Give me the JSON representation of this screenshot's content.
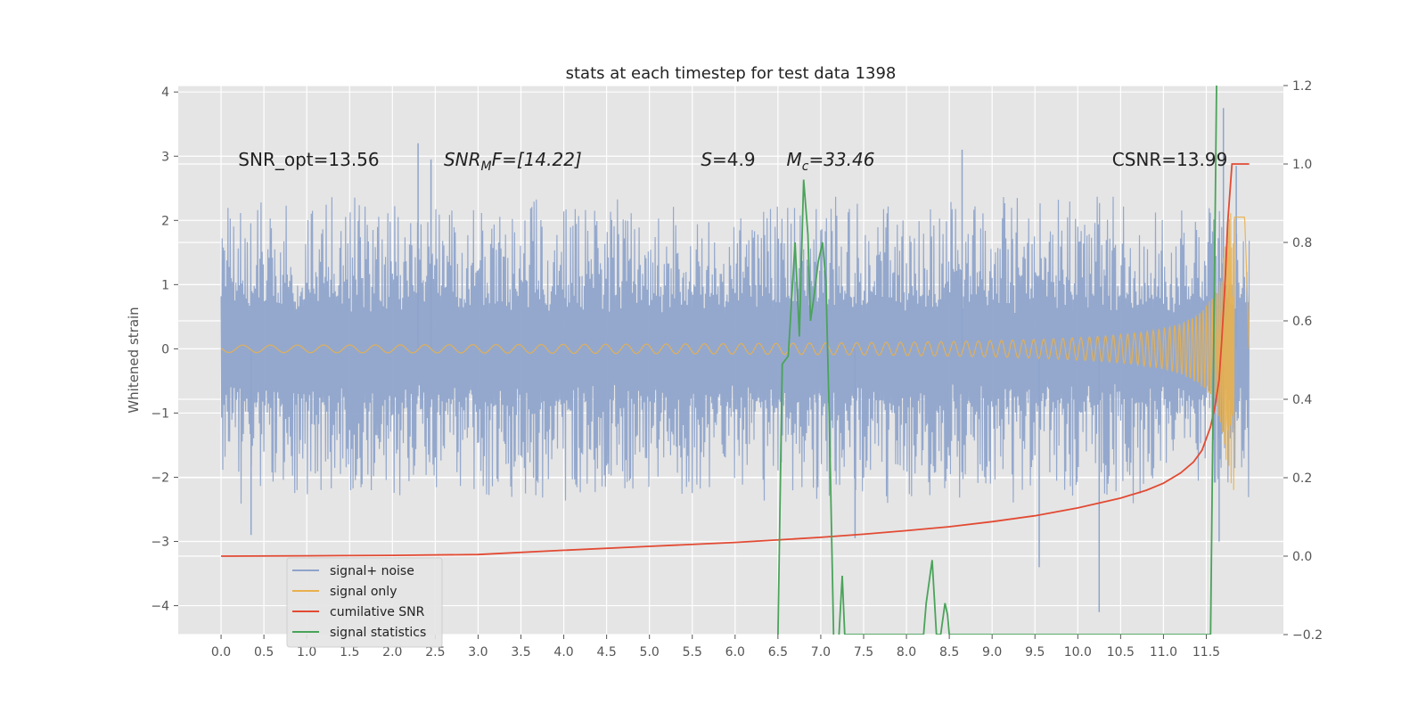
{
  "chart_data": {
    "type": "line",
    "title": "stats at each timestep for test data 1398",
    "xlabel": "",
    "ylabel": "Whitened strain",
    "xlim": [
      -0.5,
      12.4
    ],
    "ylim": [
      -4.45,
      4.1
    ],
    "y2lim": [
      -0.2,
      1.2
    ],
    "x_ticks": [
      0.0,
      0.5,
      1.0,
      1.5,
      2.0,
      2.5,
      3.0,
      3.5,
      4.0,
      4.5,
      5.0,
      5.5,
      6.0,
      6.5,
      7.0,
      7.5,
      8.0,
      8.5,
      9.0,
      9.5,
      10.0,
      10.5,
      11.0,
      11.5
    ],
    "x_tick_labels": [
      "0.0",
      "0.5",
      "1.0",
      "1.5",
      "2.0",
      "2.5",
      "3.0",
      "3.5",
      "4.0",
      "4.5",
      "5.0",
      "5.5",
      "6.0",
      "6.5",
      "7.0",
      "7.5",
      "8.0",
      "8.5",
      "9.0",
      "9.5",
      "10.0",
      "10.5",
      "11.0",
      "11.5"
    ],
    "y_ticks": [
      -4,
      -3,
      -2,
      -1,
      0,
      1,
      2,
      3,
      4
    ],
    "y_tick_labels": [
      "−4",
      "−3",
      "−2",
      "−1",
      "0",
      "1",
      "2",
      "3",
      "4"
    ],
    "y2_ticks": [
      -0.2,
      0.0,
      0.2,
      0.4,
      0.6,
      0.8,
      1.0,
      1.2
    ],
    "y2_tick_labels": [
      "−0.2",
      "0.0",
      "0.2",
      "0.4",
      "0.6",
      "0.8",
      "1.0",
      "1.2"
    ],
    "grid": true,
    "legend_position": "lower-left",
    "annotations": [
      {
        "x": 0.2,
        "y": 2.95,
        "prefix": "SNR_opt",
        "sub": "",
        "suffix": "=13.56",
        "italic": false
      },
      {
        "x": 2.6,
        "y": 2.95,
        "prefix": "SNR",
        "sub": "M",
        "suffix": "F=[14.22]",
        "italic": true
      },
      {
        "x": 5.6,
        "y": 2.95,
        "prefix": "S",
        "sub": "",
        "suffix": "=4.9",
        "italic": true
      },
      {
        "x": 6.6,
        "y": 2.95,
        "prefix": "M",
        "sub": "c",
        "suffix": "=33.46",
        "italic": true
      },
      {
        "x": 10.4,
        "y": 2.95,
        "prefix": "CSNR",
        "sub": "",
        "suffix": "=13.99",
        "italic": false
      }
    ],
    "series": [
      {
        "name": "signal+ noise",
        "axis": "left",
        "color": "#8fa4cb",
        "style": "dense-noise",
        "x_range": [
          0.0,
          12.0
        ],
        "envelope_positive": 2.3,
        "envelope_negative": -2.3,
        "peaks": [
          [
            2.3,
            3.2
          ],
          [
            2.45,
            2.95
          ],
          [
            8.65,
            3.1
          ],
          [
            11.7,
            3.75
          ],
          [
            0.35,
            -2.9
          ],
          [
            9.55,
            -3.4
          ],
          [
            10.25,
            -4.1
          ],
          [
            11.65,
            -3.0
          ],
          [
            7.4,
            -2.95
          ],
          [
            11.85,
            2.85
          ]
        ]
      },
      {
        "name": "signal only",
        "axis": "left",
        "color": "#e8b04e",
        "style": "chirp",
        "x_range": [
          0.0,
          12.0
        ],
        "amplitude_end": 2.2
      },
      {
        "name": "cumilative SNR",
        "axis": "right",
        "color": "#e24a33",
        "x": [
          0.0,
          1.0,
          2.0,
          3.0,
          4.0,
          5.0,
          6.0,
          7.0,
          7.5,
          8.0,
          8.5,
          9.0,
          9.5,
          10.0,
          10.5,
          10.8,
          11.0,
          11.2,
          11.35,
          11.45,
          11.55,
          11.6,
          11.65,
          11.68,
          11.72,
          11.75,
          11.8,
          12.0
        ],
        "y": [
          0.0,
          0.001,
          0.002,
          0.004,
          0.015,
          0.025,
          0.035,
          0.048,
          0.056,
          0.065,
          0.075,
          0.088,
          0.103,
          0.123,
          0.148,
          0.168,
          0.186,
          0.212,
          0.24,
          0.27,
          0.33,
          0.38,
          0.45,
          0.55,
          0.7,
          0.85,
          1.0,
          1.0
        ]
      },
      {
        "name": "signal statistics",
        "axis": "right",
        "color": "#4aa35a",
        "x": [
          6.5,
          6.55,
          6.62,
          6.7,
          6.75,
          6.8,
          6.85,
          6.88,
          6.92,
          6.97,
          7.02,
          7.06,
          7.1,
          7.15,
          7.2,
          7.25,
          7.28,
          8.2,
          8.23,
          8.3,
          8.35,
          8.4,
          8.45,
          8.48,
          8.5,
          11.55,
          11.58,
          11.62
        ],
        "y": [
          -0.2,
          0.49,
          0.51,
          0.8,
          0.56,
          0.96,
          0.82,
          0.6,
          0.66,
          0.75,
          0.8,
          0.7,
          0.35,
          -0.2,
          -0.25,
          -0.05,
          -0.2,
          -0.2,
          -0.12,
          -0.01,
          -0.2,
          -0.2,
          -0.12,
          -0.15,
          -0.2,
          -0.2,
          0.4,
          1.2
        ]
      }
    ]
  }
}
